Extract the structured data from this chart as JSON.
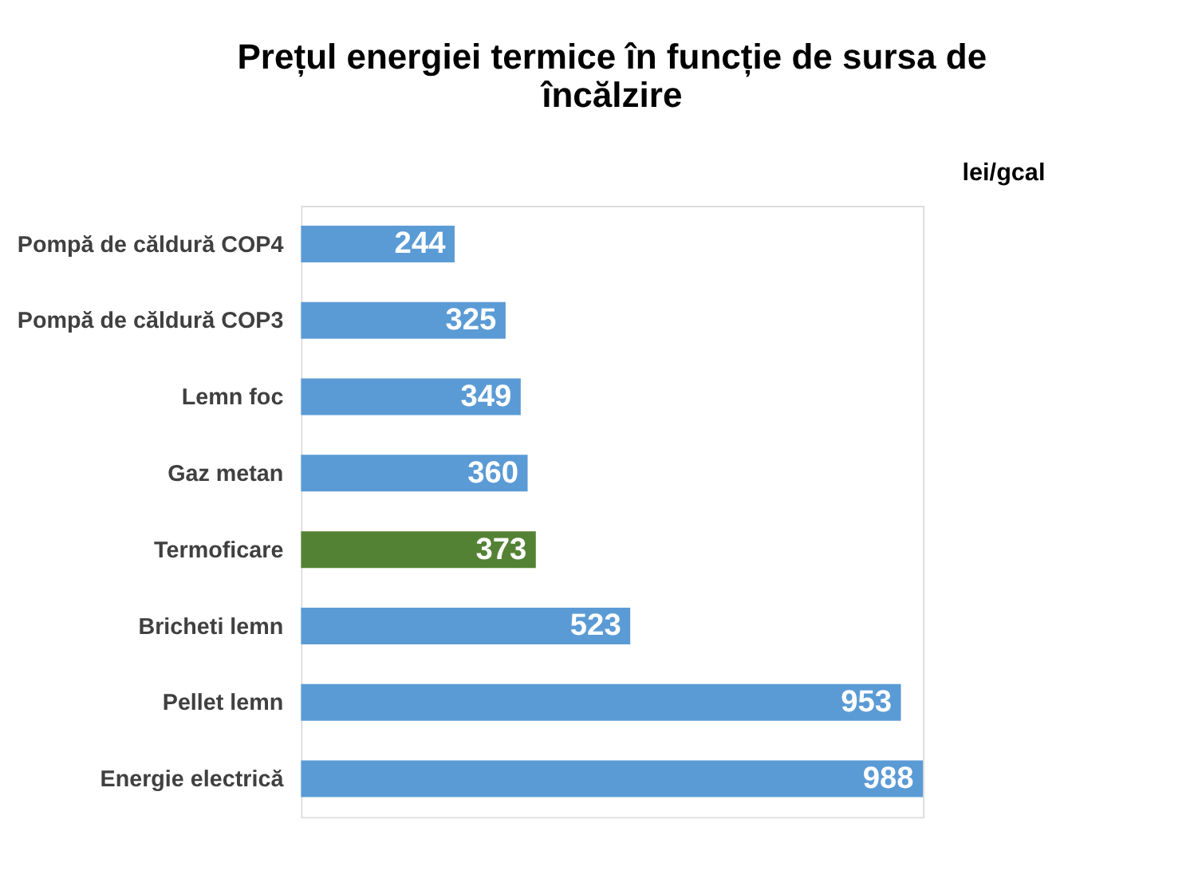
{
  "chart_data": {
    "type": "bar",
    "orientation": "horizontal",
    "title": "Prețul energiei termice în funcție de sursa de încălzire",
    "annotations": [
      "lei/gcal"
    ],
    "categories": [
      "Pompă de căldură COP4",
      "Pompă de căldură COP3",
      "Lemn foc",
      "Gaz metan",
      "Termoficare",
      "Bricheti lemn",
      "Pellet lemn",
      "Energie electrică"
    ],
    "values": [
      244,
      325,
      349,
      360,
      373,
      523,
      953,
      988
    ],
    "colors": [
      "#5b9bd5",
      "#5b9bd5",
      "#5b9bd5",
      "#5b9bd5",
      "#548235",
      "#5b9bd5",
      "#5b9bd5",
      "#5b9bd5"
    ],
    "data_labels": true
  }
}
